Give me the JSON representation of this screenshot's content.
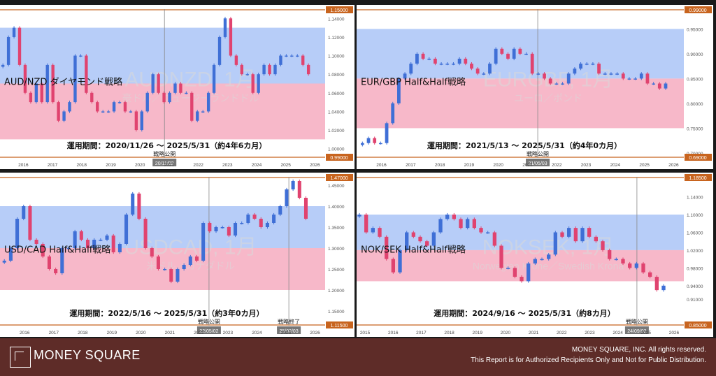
{
  "chart_data": [
    {
      "type": "candlestick",
      "title": "AUD/NZD ダイヤモンド戦略",
      "watermark": "AUDNZD, 1月",
      "watermark_sub": "豪ドル／ニュージーランドドル",
      "period": "運用期間：2020/11/26 ～ 2025/5/31（約4年6カ月）",
      "x_ticks": [
        "2016",
        "2017",
        "2018",
        "2019",
        "2020",
        "2021",
        "2022",
        "2023",
        "2024",
        "2025",
        "2026"
      ],
      "y_ticks": [
        "1.00000",
        "1.02000",
        "1.04000",
        "1.06000",
        "1.08000",
        "1.10000",
        "1.12000",
        "1.14000"
      ],
      "ylim": [
        0.99,
        1.15
      ],
      "upper_price_label": "1.15000",
      "lower_price_label": "0.99000",
      "blue_zone": [
        1.07,
        1.13
      ],
      "pink_zone": [
        1.01,
        1.07
      ],
      "markers": [
        {
          "label": "戦略公開",
          "date_label": "20/11/02",
          "x": 2020.84
        }
      ],
      "values": [
        1.09,
        1.12,
        1.13,
        1.09,
        1.06,
        1.05,
        1.07,
        1.05,
        1.09,
        1.05,
        1.03,
        1.04,
        1.05,
        1.1,
        1.1,
        1.06,
        1.05,
        1.04,
        1.04,
        1.04,
        1.05,
        1.05,
        1.04,
        1.04,
        1.02,
        1.04,
        1.06,
        1.08,
        1.06,
        1.05,
        1.06,
        1.07,
        1.06,
        1.06,
        1.03,
        1.04,
        1.04,
        1.06,
        1.09,
        1.12,
        1.14,
        1.1,
        1.09,
        1.08,
        1.08,
        1.06,
        1.08,
        1.09,
        1.08,
        1.09,
        1.1,
        1.1,
        1.1,
        1.1,
        1.09,
        1.08
      ],
      "x_start": 2015.3,
      "x_range": [
        2015.2,
        2026.35
      ]
    },
    {
      "type": "candlestick",
      "title": "EUR/GBP Half&Half戦略",
      "watermark": "EURGBP, 1月",
      "watermark_sub": "ユーロ／ポンド",
      "period": "運用期間：2021/5/13 ～ 2025/5/31（約4年0カ月）",
      "x_ticks": [
        "2016",
        "2017",
        "2018",
        "2019",
        "2020",
        "2021",
        "2022",
        "2023",
        "2024",
        "2025",
        "2026"
      ],
      "y_ticks": [
        "0.70000",
        "0.75000",
        "0.80000",
        "0.85000",
        "0.90000",
        "0.95000"
      ],
      "ylim": [
        0.69,
        0.99
      ],
      "upper_price_label": "0.99000",
      "lower_price_label": "0.69000",
      "blue_zone": [
        0.85,
        0.95
      ],
      "pink_zone": [
        0.75,
        0.85
      ],
      "markers": [
        {
          "label": "戦略公開",
          "date_label": "21/05/03",
          "x": 2021.35
        }
      ],
      "values": [
        0.72,
        0.73,
        0.72,
        0.72,
        0.76,
        0.8,
        0.85,
        0.86,
        0.88,
        0.9,
        0.89,
        0.89,
        0.88,
        0.88,
        0.88,
        0.88,
        0.89,
        0.88,
        0.87,
        0.86,
        0.86,
        0.88,
        0.91,
        0.9,
        0.89,
        0.91,
        0.9,
        0.9,
        0.86,
        0.86,
        0.85,
        0.84,
        0.84,
        0.84,
        0.86,
        0.87,
        0.88,
        0.88,
        0.88,
        0.86,
        0.86,
        0.86,
        0.86,
        0.85,
        0.85,
        0.85,
        0.86,
        0.84,
        0.84,
        0.83,
        0.84
      ],
      "x_start": 2015.35,
      "x_range": [
        2015.15,
        2026.35
      ]
    },
    {
      "type": "candlestick",
      "title": "USD/CAD Half&Half戦略",
      "watermark": "USDCAD, 1月",
      "watermark_sub": "米ドル／カナダドル",
      "period": "運用期間：2022/5/16 ～ 2025/5/31（約3年0カ月）",
      "x_ticks": [
        "2016",
        "2017",
        "2018",
        "2019",
        "2020",
        "2021",
        "2022",
        "2023",
        "2024",
        "2025",
        "2026"
      ],
      "y_ticks": [
        "1.15000",
        "1.20000",
        "1.25000",
        "1.30000",
        "1.35000",
        "1.40000",
        "1.45000"
      ],
      "ylim": [
        1.115,
        1.47
      ],
      "upper_price_label": "1.47000",
      "lower_price_label": "1.11500",
      "blue_zone": [
        1.3,
        1.4
      ],
      "pink_zone": [
        1.2,
        1.3
      ],
      "markers": [
        {
          "label": "戦略公開",
          "date_label": "22/05/02",
          "x": 2022.35
        },
        {
          "label": "戦略終了",
          "date_label": "25/02/03",
          "x": 2025.1
        }
      ],
      "values": [
        1.27,
        1.3,
        1.37,
        1.4,
        1.32,
        1.31,
        1.28,
        1.25,
        1.24,
        1.3,
        1.3,
        1.34,
        1.32,
        1.3,
        1.32,
        1.32,
        1.33,
        1.29,
        1.31,
        1.38,
        1.43,
        1.37,
        1.3,
        1.28,
        1.25,
        1.25,
        1.22,
        1.25,
        1.26,
        1.28,
        1.27,
        1.36,
        1.34,
        1.35,
        1.35,
        1.33,
        1.36,
        1.36,
        1.38,
        1.37,
        1.35,
        1.36,
        1.38,
        1.4,
        1.44,
        1.46,
        1.42,
        1.37
      ],
      "x_start": 2015.3,
      "x_range": [
        2015.15,
        2026.35
      ]
    },
    {
      "type": "candlestick",
      "title": "NOK/SEK Half&Half戦略",
      "watermark": "NOKSEK, 1月",
      "watermark_sub": "Norwegian Krone／Swedish Krona",
      "period": "運用期間：2024/9/16 ～ 2025/5/31（約8カ月）",
      "x_ticks": [
        "2015",
        "2016",
        "2017",
        "2018",
        "2019",
        "2020",
        "2021",
        "2022",
        "2023",
        "2024",
        "2025",
        "2026"
      ],
      "y_ticks": [
        "0.91000",
        "0.94000",
        "0.98000",
        "1.02000",
        "1.06000",
        "1.10000",
        "1.14000",
        "1.18500"
      ],
      "ylim": [
        0.85,
        1.185
      ],
      "upper_price_label": "1.18500",
      "lower_price_label": "0.85000",
      "blue_zone": [
        1.02,
        1.1
      ],
      "pink_zone": [
        0.95,
        1.02
      ],
      "markers": [
        {
          "label": "戦略公開",
          "date_label": "24/09/02",
          "x": 2024.68
        }
      ],
      "values": [
        1.1,
        1.06,
        1.07,
        1.05,
        1.0,
        0.97,
        1.02,
        1.06,
        1.05,
        1.04,
        1.03,
        1.06,
        1.09,
        1.1,
        1.09,
        1.07,
        1.09,
        1.07,
        1.06,
        1.06,
        1.03,
        0.98,
        0.98,
        0.96,
        0.95,
        0.99,
        1.0,
        1.0,
        1.01,
        1.06,
        1.05,
        1.07,
        1.04,
        1.07,
        1.05,
        1.04,
        1.02,
        1.0,
        1.0,
        0.99,
        0.98,
        0.99,
        0.97,
        0.96,
        0.93,
        0.94
      ],
      "x_start": 2014.8,
      "x_range": [
        2014.7,
        2026.35
      ]
    }
  ],
  "footer": {
    "brand": "MONEY SQUARE",
    "copyright": "MONEY SQUARE, INC. All rights reserved.",
    "disclaimer": "This Report is for Authorized Recipients Only and Not for Public Distribution."
  },
  "colors": {
    "blue_zone": "#b7cdf8",
    "pink_zone": "#f7b8c9",
    "candle_up": "#3f6fd6",
    "candle_down": "#e0436f",
    "border": "#c8641e",
    "footer_bg": "#5e2c28",
    "frame": "#1a1a1a"
  }
}
